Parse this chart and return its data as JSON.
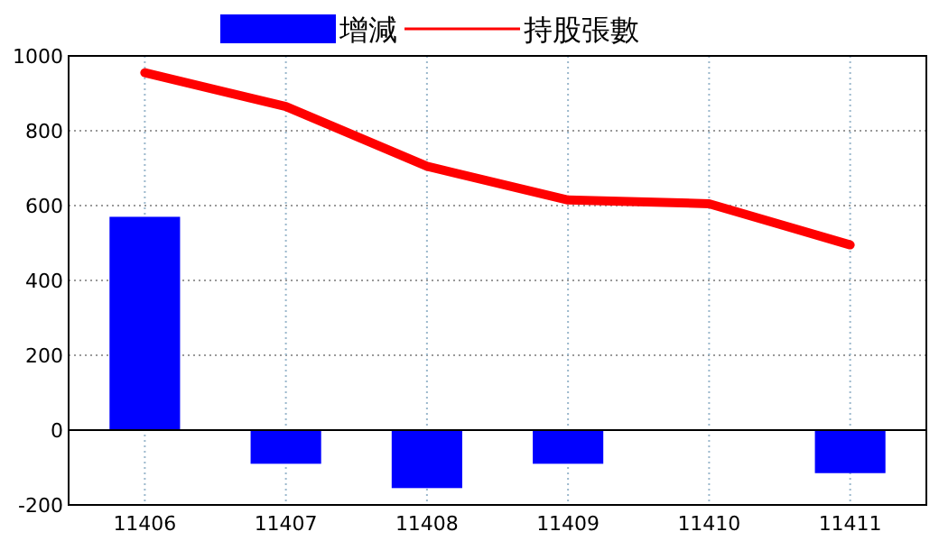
{
  "chart_data": {
    "type": "bar",
    "categories": [
      "11406",
      "11407",
      "11408",
      "11409",
      "11410",
      "11411"
    ],
    "series": [
      {
        "name": "增減",
        "color": "#0000ff",
        "values": [
          570,
          -90,
          -155,
          -90,
          0,
          -115
        ]
      },
      {
        "name": "持股張數",
        "type": "line",
        "color": "#ff0000",
        "values": [
          955,
          865,
          705,
          615,
          605,
          495
        ]
      }
    ],
    "ylim": [
      -200,
      1000
    ],
    "yticks": [
      -200,
      0,
      200,
      400,
      600,
      800,
      1000
    ],
    "grid": true,
    "legend": "top",
    "marker": "none",
    "line_style": "solid"
  }
}
